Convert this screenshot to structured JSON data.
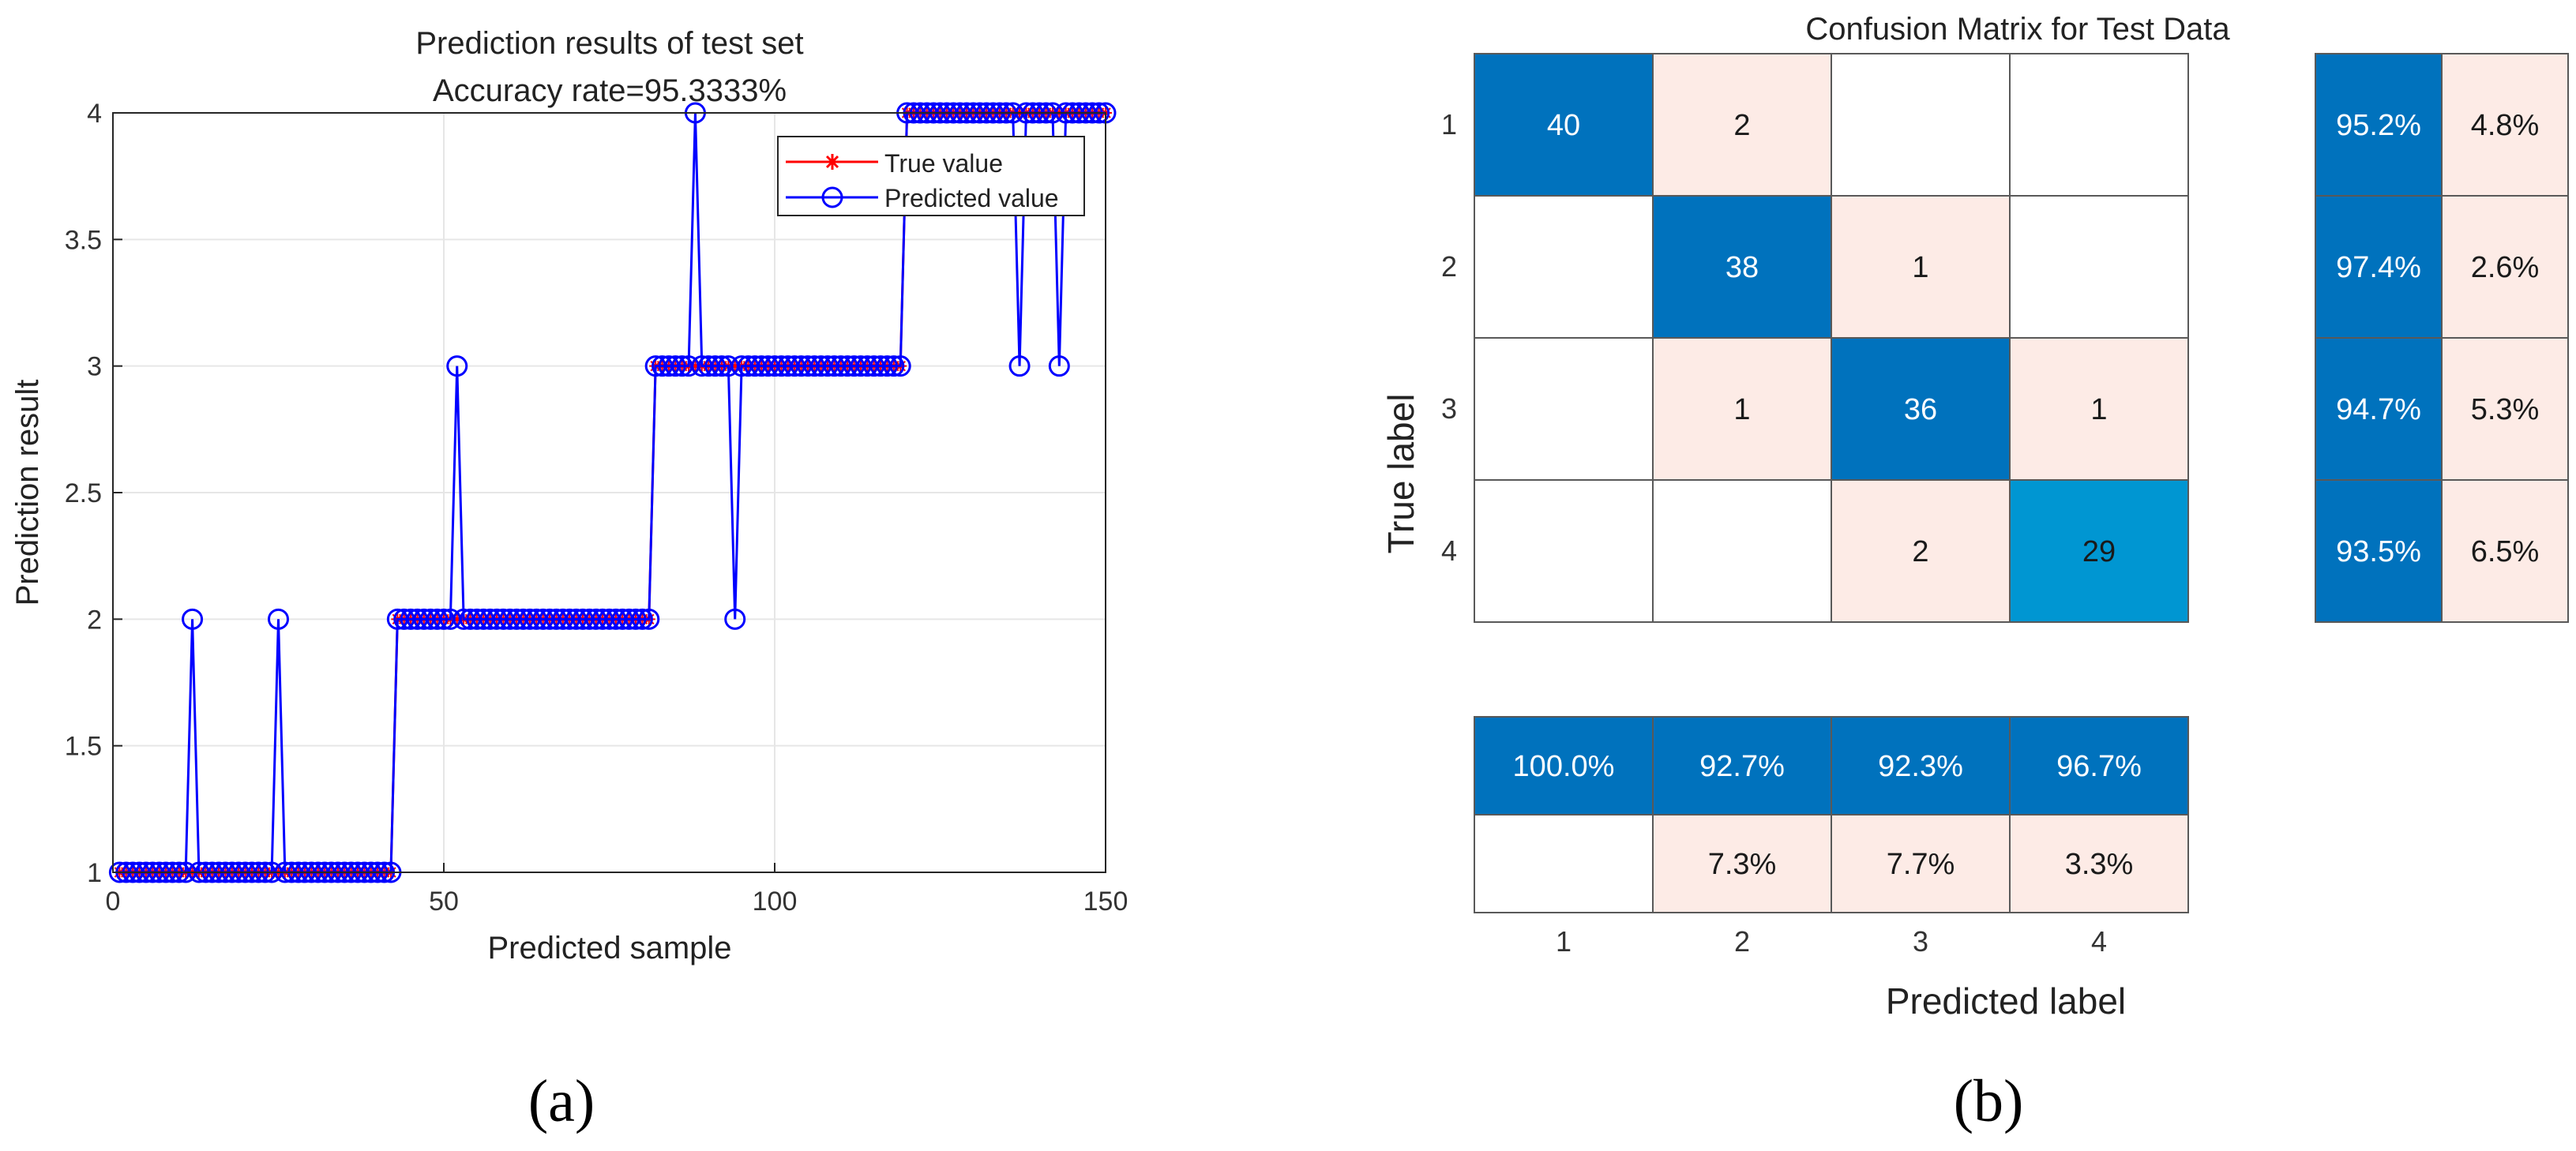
{
  "figure": {
    "panel_a_caption": "(a)",
    "panel_b_caption": "(b)"
  },
  "chart_data": [
    {
      "type": "line",
      "title": "Prediction results of test set",
      "subtitle": "Accuracy rate=95.3333%",
      "xlabel": "Predicted sample",
      "ylabel": "Prediction result",
      "xlim": [
        0,
        150
      ],
      "ylim": [
        1,
        4
      ],
      "xticks": [
        0,
        50,
        100,
        150
      ],
      "yticks": [
        1,
        1.5,
        2,
        2.5,
        3,
        3.5,
        4
      ],
      "ytick_labels": [
        "1",
        "1.5",
        "2",
        "2.5",
        "3",
        "3.5",
        "4"
      ],
      "grid": true,
      "legend_position": "top-right",
      "series": [
        {
          "name": "True value",
          "color": "#ff0000",
          "marker": "star",
          "segments": [
            {
              "from": 1,
              "to": 42,
              "value": 1
            },
            {
              "from": 43,
              "to": 81,
              "value": 2
            },
            {
              "from": 82,
              "to": 119,
              "value": 3
            },
            {
              "from": 120,
              "to": 150,
              "value": 4
            }
          ]
        },
        {
          "name": "Predicted value",
          "color": "#0000ff",
          "marker": "circle",
          "segments": [
            {
              "from": 1,
              "to": 42,
              "value": 1
            },
            {
              "from": 43,
              "to": 81,
              "value": 2
            },
            {
              "from": 82,
              "to": 119,
              "value": 3
            },
            {
              "from": 120,
              "to": 150,
              "value": 4
            }
          ],
          "deviations": [
            {
              "x": 12,
              "value": 2
            },
            {
              "x": 25,
              "value": 2
            },
            {
              "x": 52,
              "value": 3
            },
            {
              "x": 88,
              "value": 4
            },
            {
              "x": 94,
              "value": 2
            },
            {
              "x": 137,
              "value": 3
            },
            {
              "x": 143,
              "value": 3
            }
          ]
        }
      ]
    },
    {
      "type": "heatmap",
      "title": "Confusion Matrix for Test Data",
      "xlabel": "Predicted label",
      "ylabel": "True label",
      "labels": [
        "1",
        "2",
        "3",
        "4"
      ],
      "matrix": [
        [
          40,
          2,
          null,
          null
        ],
        [
          null,
          38,
          1,
          null
        ],
        [
          null,
          1,
          36,
          1
        ],
        [
          null,
          null,
          2,
          29
        ]
      ],
      "row_summary": [
        [
          "95.2%",
          "4.8%"
        ],
        [
          "97.4%",
          "2.6%"
        ],
        [
          "94.7%",
          "5.3%"
        ],
        [
          "93.5%",
          "6.5%"
        ]
      ],
      "column_summary": {
        "correct": [
          "100.0%",
          "92.7%",
          "92.3%",
          "96.7%"
        ],
        "incorrect": [
          null,
          "7.3%",
          "7.7%",
          "3.3%"
        ]
      },
      "colors": {
        "diagonal_dark": "#0072bd",
        "diagonal_light": "#0096d2",
        "off_diagonal": "#fdebe6",
        "empty": "#ffffff",
        "light_text": "#ffffff",
        "dark_text": "#1a1a1a"
      }
    }
  ]
}
